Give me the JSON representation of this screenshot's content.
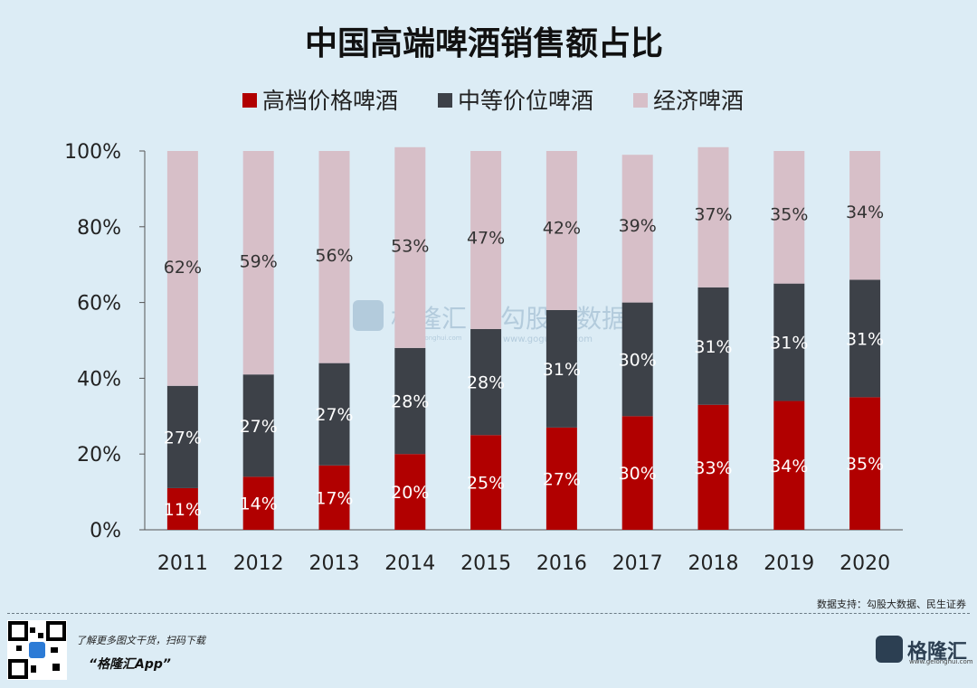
{
  "chart_data": {
    "type": "bar",
    "stacked": true,
    "title": "中国高端啤酒销售额占比",
    "categories": [
      "2011",
      "2012",
      "2013",
      "2014",
      "2015",
      "2016",
      "2017",
      "2018",
      "2019",
      "2020"
    ],
    "series": [
      {
        "name": "高档价格啤酒",
        "color": "#b10000",
        "values": [
          11,
          14,
          17,
          20,
          25,
          27,
          30,
          33,
          34,
          35
        ]
      },
      {
        "name": "中等价位啤酒",
        "color": "#3d4148",
        "values": [
          27,
          27,
          27,
          28,
          28,
          31,
          30,
          31,
          31,
          31
        ]
      },
      {
        "name": "经济啤酒",
        "color": "#d7bfc8",
        "values": [
          62,
          59,
          56,
          53,
          47,
          42,
          39,
          37,
          35,
          34
        ]
      }
    ],
    "ylim": [
      0,
      100
    ],
    "yticks": [
      "0%",
      "20%",
      "40%",
      "60%",
      "80%",
      "100%"
    ],
    "xlabel": "",
    "ylabel": "",
    "legend": "top"
  },
  "watermark": {
    "brand": "格隆汇",
    "partner": "勾股大数据",
    "url_left": "www.gelonghui.com",
    "url_right": "www.gogudata.com"
  },
  "footer": {
    "source": "数据支持：勾股大数据、民生证券",
    "promo": "了解更多图文干货，扫码下载",
    "app": "“格隆汇App”",
    "logo_text": "格隆汇",
    "logo_url": "www.gelonghui.com"
  }
}
